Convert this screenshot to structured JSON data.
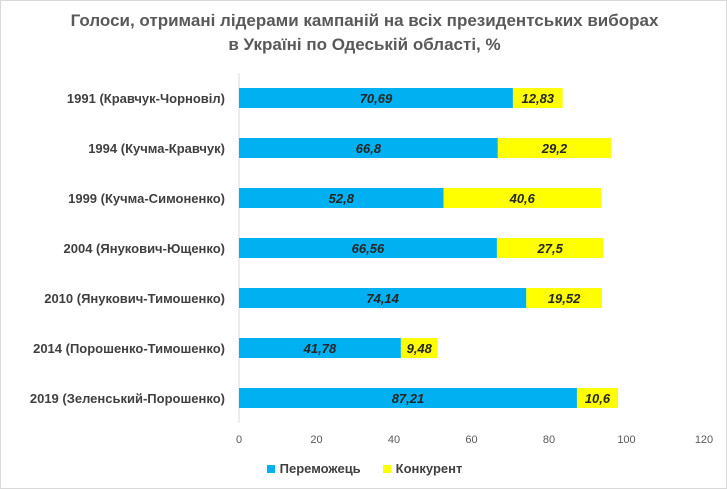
{
  "chart_data": {
    "type": "bar",
    "orientation": "horizontal",
    "stacked": true,
    "title_lines": [
      "Голоси, отримані лідерами кампаній на всіх президентських виборах",
      "в Україні по Одеській області, %"
    ],
    "categories": [
      "1991 (Кравчук-Чорновіл)",
      "1994 (Кучма-Кравчук)",
      "1999 (Кучма-Симоненко)",
      "2004 (Янукович-Ющенко)",
      "2010 (Янукович-Тимошенко)",
      "2014 (Порошенко-Тимошенко)",
      "2019 (Зеленський-Порошенко)"
    ],
    "series": [
      {
        "name": "Переможець",
        "color": "#00b0f0",
        "values": [
          70.69,
          66.8,
          52.8,
          66.56,
          74.14,
          41.78,
          87.21
        ],
        "labels": [
          "70,69",
          "66,8",
          "52,8",
          "66,56",
          "74,14",
          "41,78",
          "87,21"
        ]
      },
      {
        "name": "Конкурент",
        "color": "#ffff00",
        "values": [
          12.83,
          29.2,
          40.6,
          27.5,
          19.52,
          9.48,
          10.6
        ],
        "labels": [
          "12,83",
          "29,2",
          "40,6",
          "27,5",
          "19,52",
          "9,48",
          "10,6"
        ]
      }
    ],
    "xlim": [
      0,
      120
    ],
    "xticks": [
      0,
      20,
      40,
      60,
      80,
      100,
      120
    ],
    "gridlines": false,
    "legend_position": "bottom"
  }
}
